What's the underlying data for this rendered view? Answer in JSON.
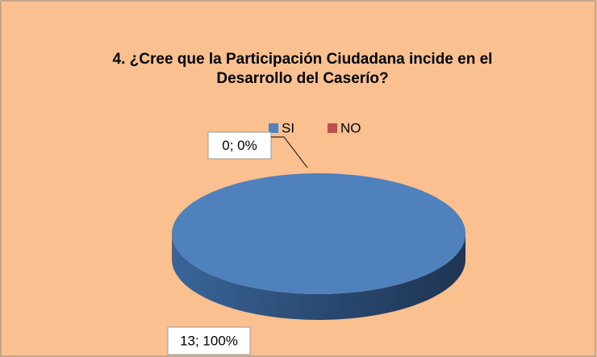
{
  "chart_data": {
    "type": "pie3d",
    "title": "4. ¿Cree que la Participación Ciudadana incide en el Desarrollo del Caserío?",
    "categories": [
      "SI",
      "NO"
    ],
    "values": [
      13,
      0
    ],
    "value_labels": [
      "13; 100%",
      "0; 0%"
    ],
    "colors": [
      "#4F81BD",
      "#C0504D"
    ],
    "legend": "top"
  }
}
